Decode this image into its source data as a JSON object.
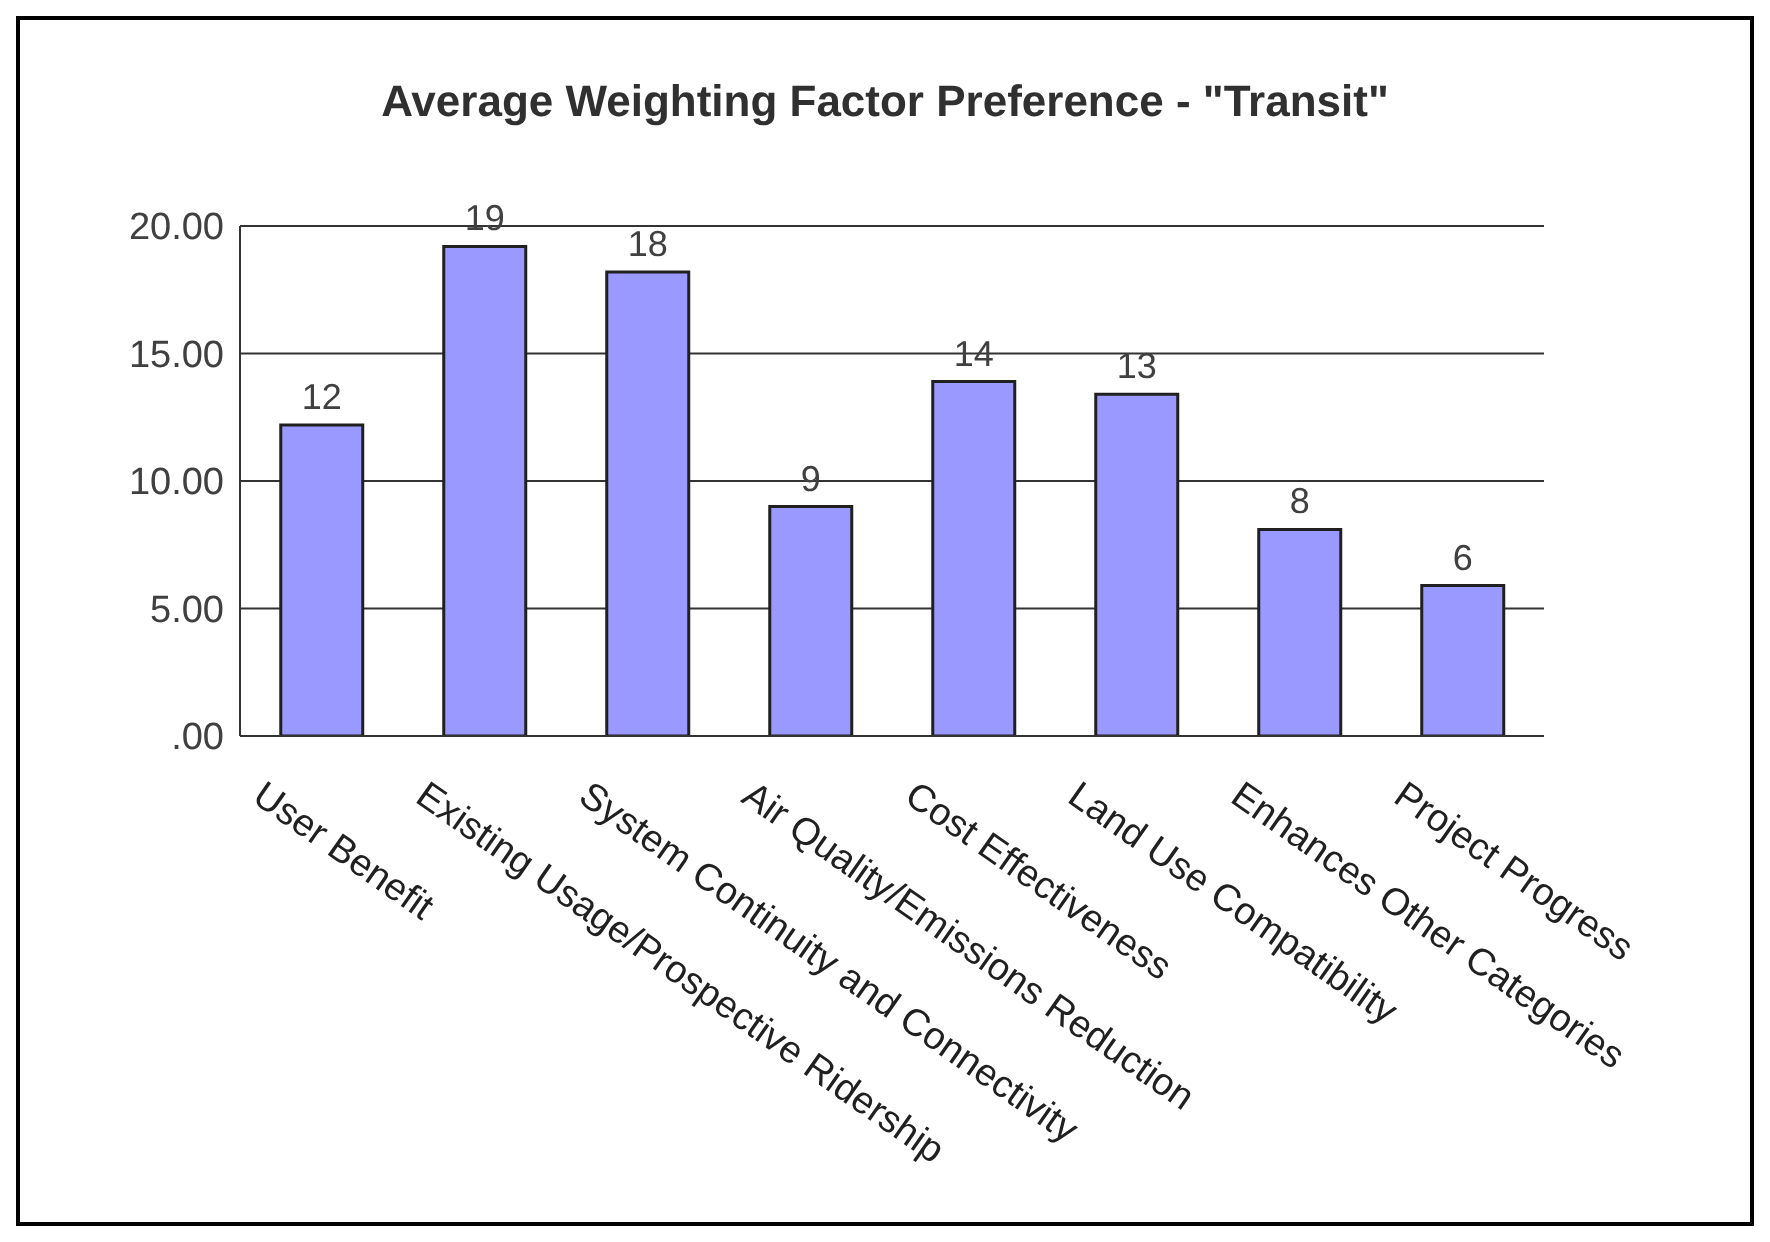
{
  "chart_data": {
    "type": "bar",
    "title": "Average Weighting Factor Preference - \"Transit\"",
    "categories": [
      "User Benefit",
      "Existing Usage/Prospective Ridership",
      "System Continuity and Connectivity",
      "Air Quality/Emissions Reduction",
      "Cost Effectiveness",
      "Land Use Compatibility",
      "Enhances Other Categories",
      "Project Progress"
    ],
    "values": [
      12.2,
      19.2,
      18.2,
      9.0,
      13.9,
      13.4,
      8.1,
      5.9
    ],
    "value_labels": [
      "12",
      "19",
      "18",
      "9",
      "14",
      "13",
      "8",
      "6"
    ],
    "color": "#9999ff",
    "ylim": [
      0,
      20
    ],
    "yticks": [
      {
        "value": 0,
        "label": ".00"
      },
      {
        "value": 5,
        "label": "5.00"
      },
      {
        "value": 10,
        "label": "10.00"
      },
      {
        "value": 15,
        "label": "15.00"
      },
      {
        "value": 20,
        "label": "20.00"
      }
    ],
    "grid": "y",
    "legend": false
  }
}
